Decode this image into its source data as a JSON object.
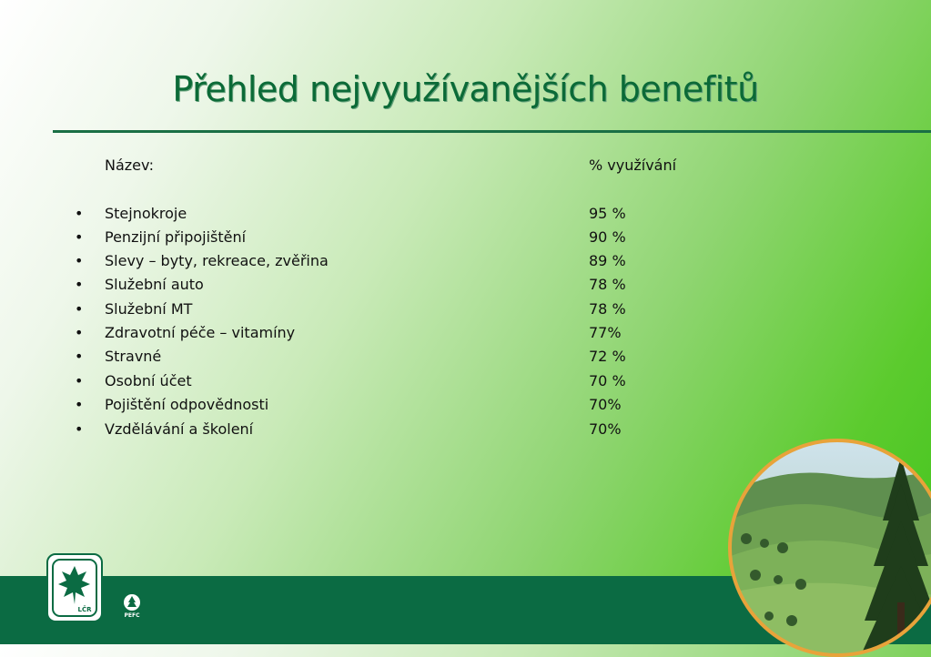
{
  "slide": {
    "title": "Přehled nejvyužívanějších benefitů"
  },
  "table": {
    "header_name": "Název:",
    "header_pct": "% využívání",
    "rows": [
      {
        "name": "Stejnokroje",
        "pct": "95 %"
      },
      {
        "name": "Penzijní připojištění",
        "pct": "90 %"
      },
      {
        "name": "Slevy – byty, rekreace, zvěřina",
        "pct": "89 %"
      },
      {
        "name": "Služební auto",
        "pct": "78 %"
      },
      {
        "name": "Služební MT",
        "pct": "78 %"
      },
      {
        "name": "Zdravotní péče – vitamíny",
        "pct": "77%"
      },
      {
        "name": "Stravné",
        "pct": "72 %"
      },
      {
        "name": "Osobní účet",
        "pct": "70 %"
      },
      {
        "name": "Pojištění odpovědnosti",
        "pct": "70%"
      },
      {
        "name": "Vzdělávání a školení",
        "pct": "70%"
      }
    ]
  },
  "logos": {
    "lcr_text": "LČR",
    "pefc_text": "PEFC"
  },
  "colors": {
    "title": "#0b6a37",
    "footer": "#0b6b43",
    "photo_ring": "#e8a33a"
  }
}
